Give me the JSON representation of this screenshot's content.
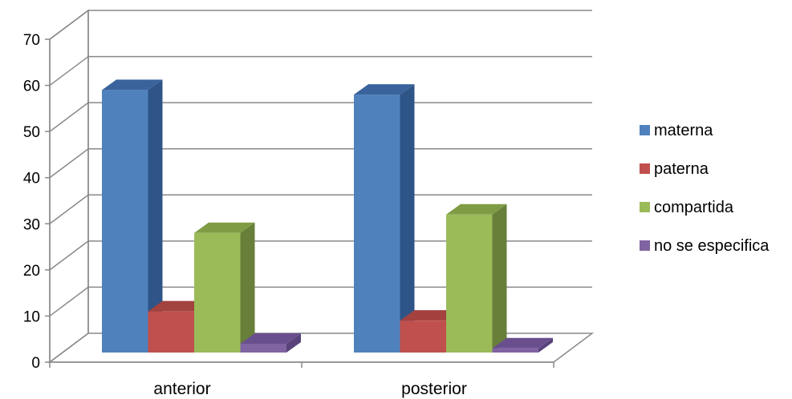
{
  "chart_data": {
    "type": "bar",
    "categories": [
      "anterior",
      "posterior"
    ],
    "series": [
      {
        "name": "materna",
        "values": [
          59,
          58
        ],
        "color": "#4F81BD",
        "side": "#2F5487",
        "top": "#3A639C"
      },
      {
        "name": "paterna",
        "values": [
          11,
          9
        ],
        "color": "#C0504D",
        "side": "#8B3533",
        "top": "#A3423F"
      },
      {
        "name": "compartida",
        "values": [
          28,
          32
        ],
        "color": "#9BBB59",
        "side": "#687F3A",
        "top": "#7F9C45"
      },
      {
        "name": "no se especifica",
        "values": [
          4,
          3
        ],
        "color": "#8064A2",
        "side": "#59437A",
        "top": "#6A4F8E"
      }
    ],
    "ylim": [
      0,
      70
    ],
    "y_ticks": [
      "0",
      "10",
      "20",
      "30",
      "40",
      "50",
      "60",
      "70"
    ],
    "grid": true,
    "legend": "right"
  }
}
